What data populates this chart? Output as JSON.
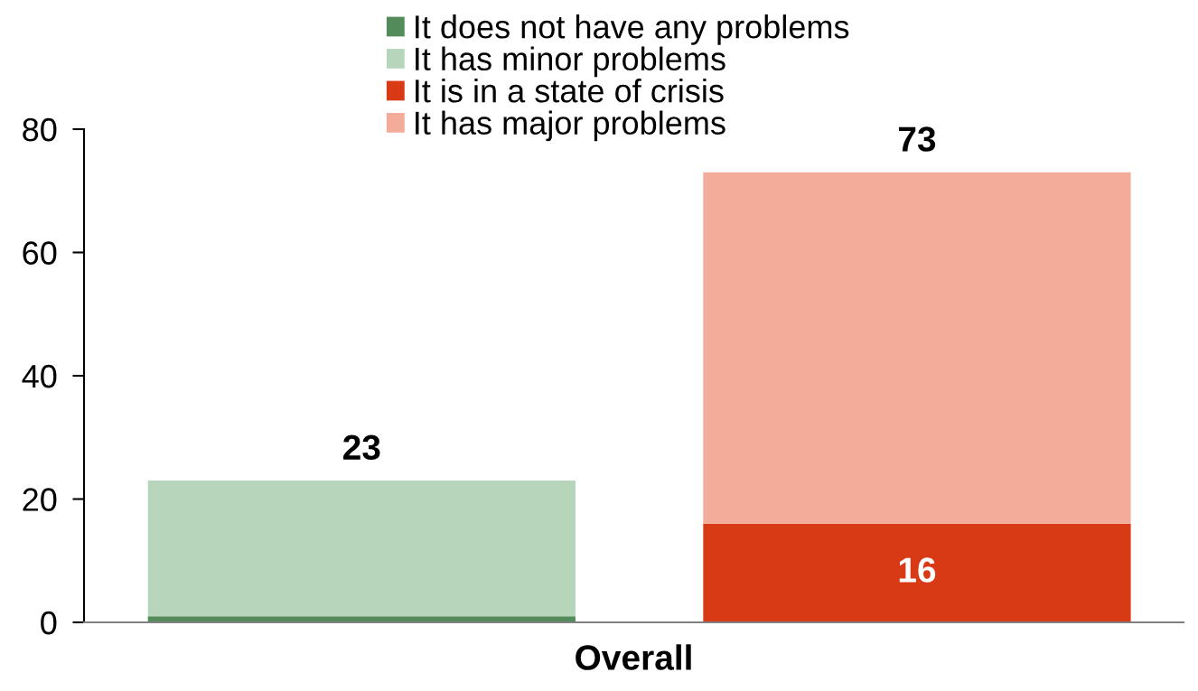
{
  "chart_data": {
    "type": "bar",
    "stacked": true,
    "categories": [
      null,
      null
    ],
    "xlabel": "Overall",
    "series": [
      {
        "name": "It does not have any problems",
        "color": "#548b5a",
        "values": [
          1,
          null
        ]
      },
      {
        "name": "It has minor problems",
        "color": "#b6d5bb",
        "values": [
          22,
          null
        ]
      },
      {
        "name": "It is in a state of crisis",
        "color": "#d83a16",
        "values": [
          null,
          16
        ],
        "value_labels": [
          null,
          "16"
        ]
      },
      {
        "name": "It has major problems",
        "color": "#f4ac9a",
        "values": [
          null,
          57
        ]
      }
    ],
    "totals": [
      "23",
      "73"
    ],
    "ylim": [
      0,
      80
    ],
    "yticks": [
      0,
      20,
      40,
      60,
      80
    ],
    "grid": false,
    "legend": "top"
  }
}
